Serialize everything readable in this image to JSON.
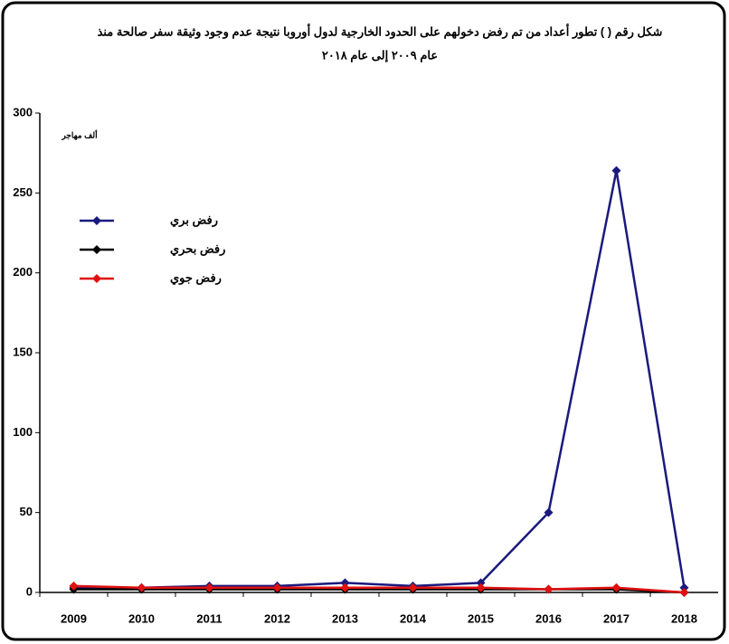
{
  "chart_data": {
    "type": "line",
    "title": [
      "شكل رقم ( ) تطور أعداد من تم رفض دخولهم على الحدود الخارجية لدول أوروبا نتيجة عدم وجود وثيقة سفر صالحة منذ",
      "عام ٢٠٠٩ إلى عام ٢٠١٨"
    ],
    "y_unit_label": "ألف مهاجر",
    "categories": [
      "2009",
      "2010",
      "2011",
      "2012",
      "2013",
      "2014",
      "2015",
      "2016",
      "2017",
      "2018"
    ],
    "series": [
      {
        "name": "رفض بري",
        "color": "#1a1a7e",
        "values": [
          3,
          3,
          4,
          4,
          6,
          4,
          6,
          50,
          264,
          3
        ]
      },
      {
        "name": "رفض بحري",
        "color": "#000000",
        "values": [
          2,
          2,
          2,
          2,
          2,
          2,
          2,
          2,
          2,
          0
        ]
      },
      {
        "name": "رفض جوي",
        "color": "#e01010",
        "values": [
          4,
          3,
          3,
          3,
          3,
          3,
          3,
          2,
          3,
          0
        ]
      }
    ],
    "ylim": [
      0,
      300
    ],
    "yticks": [
      0,
      50,
      100,
      150,
      200,
      250,
      300
    ],
    "grid": false,
    "legend": "upper left"
  }
}
